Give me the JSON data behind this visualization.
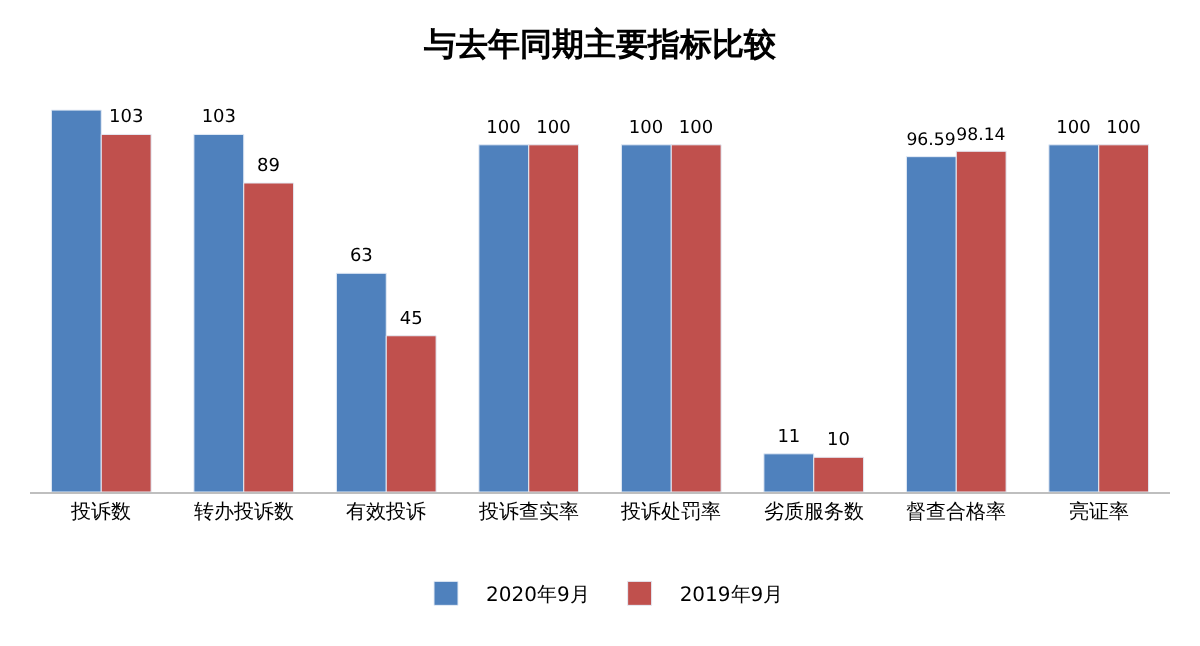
{
  "chart_data": {
    "type": "bar",
    "title": "与去年同期主要指标比较",
    "categories": [
      "投诉数",
      "转办投诉数",
      "有效投诉",
      "投诉查实率",
      "投诉处罚率",
      "劣质服务数",
      "督查合格率",
      "亮证率"
    ],
    "series": [
      {
        "name": "2020年9月",
        "color": "#4f81bd",
        "values": [
          110,
          103,
          63,
          100,
          100,
          11,
          96.59,
          100
        ],
        "value_labels": [
          null,
          "103",
          "63",
          "100",
          "100",
          "11",
          "96.59",
          "100"
        ]
      },
      {
        "name": "2019年9月",
        "color": "#c0504d",
        "values": [
          103,
          89,
          45,
          100,
          100,
          10,
          98.14,
          100
        ],
        "value_labels": [
          "103",
          "89",
          "45",
          "100",
          "100",
          "10",
          "98.14",
          "100"
        ]
      }
    ],
    "legend": "bottom"
  }
}
